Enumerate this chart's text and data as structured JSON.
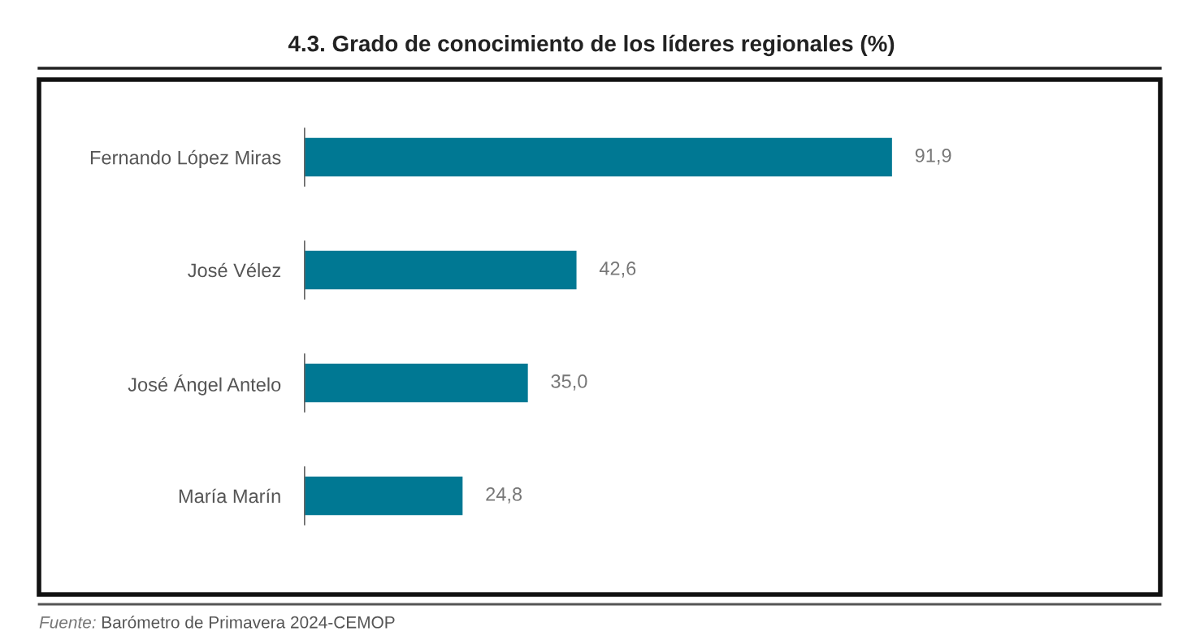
{
  "chart_data": {
    "type": "bar",
    "orientation": "horizontal",
    "title": "4.3. Grado de conocimiento de los líderes regionales (%)",
    "categories": [
      "Fernando López Miras",
      "José Vélez",
      "José Ángel Antelo",
      "María Marín"
    ],
    "values": [
      91.9,
      42.6,
      35.0,
      24.8
    ],
    "value_labels": [
      "91,9",
      "42,6",
      "35,0",
      "24,8"
    ],
    "color": "#007893",
    "grid": false,
    "legend": false,
    "tick_labels": "y",
    "annotations": [
      "Fuente: Barómetro de Primavera 2024-CEMOP"
    ]
  }
}
